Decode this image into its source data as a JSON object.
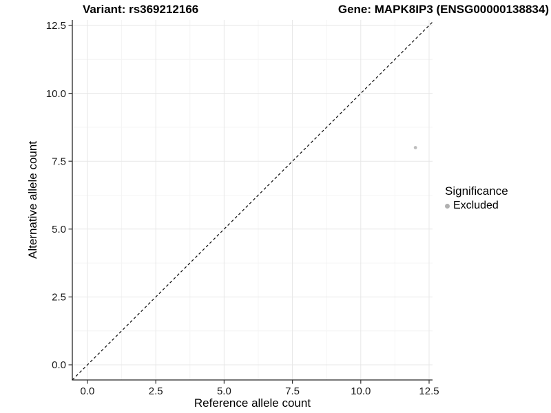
{
  "chart_data": {
    "type": "scatter",
    "title_left": "Variant: rs369212166",
    "title_right": "Gene: MAPK8IP3 (ENSG00000138834)",
    "xlabel": "Reference allele count",
    "ylabel": "Alternative allele count",
    "x_ticks": [
      0.0,
      2.5,
      5.0,
      7.5,
      10.0,
      12.5
    ],
    "y_ticks": [
      0.0,
      2.5,
      5.0,
      7.5,
      10.0,
      12.5
    ],
    "tick_decimals": 1,
    "xlim": [
      -0.554,
      12.626
    ],
    "ylim": [
      -0.558,
      12.703
    ],
    "grid": "major+minor",
    "series": [
      {
        "name": "Excluded",
        "color": "#bdbdbd",
        "points": [
          {
            "x": 12,
            "y": 8
          }
        ]
      }
    ],
    "reference_line": {
      "type": "identity",
      "slope": 1,
      "intercept": 0,
      "style": "dashed",
      "color": "#111111"
    },
    "legend": {
      "title": "Significance",
      "position": "right",
      "items": [
        {
          "label": "Excluded",
          "color": "#b0b0b0"
        }
      ]
    },
    "colors": {
      "background": "#ffffff",
      "grid_major": "#e7e7e7",
      "grid_minor": "#f4f4f4",
      "axis_line": "#262626",
      "tick_mark": "#333333",
      "tick_label": "#1a1a1a",
      "axis_title": "#000000"
    }
  }
}
